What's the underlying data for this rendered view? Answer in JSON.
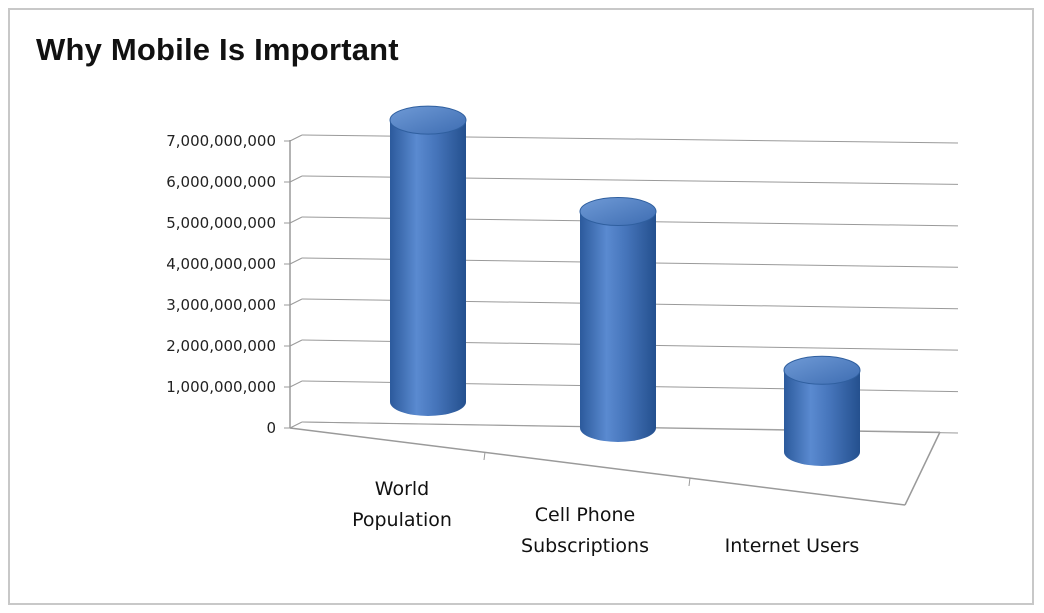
{
  "chart_data": {
    "type": "bar",
    "style": "3d-cylinder",
    "title": "Why Mobile Is Important",
    "xlabel": "",
    "ylabel": "",
    "categories": [
      "World Population",
      "Cell Phone Subscriptions",
      "Internet Users"
    ],
    "category_lines": [
      [
        "World",
        "Population"
      ],
      [
        "Cell Phone",
        "Subscriptions"
      ],
      [
        "Internet Users"
      ]
    ],
    "series": [
      {
        "values": [
          6900000000,
          5300000000,
          2000000000
        ]
      }
    ],
    "ylim": [
      0,
      7000000000
    ],
    "yticks": [
      0,
      1000000000,
      2000000000,
      3000000000,
      4000000000,
      5000000000,
      6000000000,
      7000000000
    ],
    "ytick_labels": [
      "0",
      "1,000,000,000",
      "2,000,000,000",
      "3,000,000,000",
      "4,000,000,000",
      "5,000,000,000",
      "6,000,000,000",
      "7,000,000,000"
    ],
    "grid": true,
    "legend": "none",
    "bar_color": "#4a7ac0"
  }
}
